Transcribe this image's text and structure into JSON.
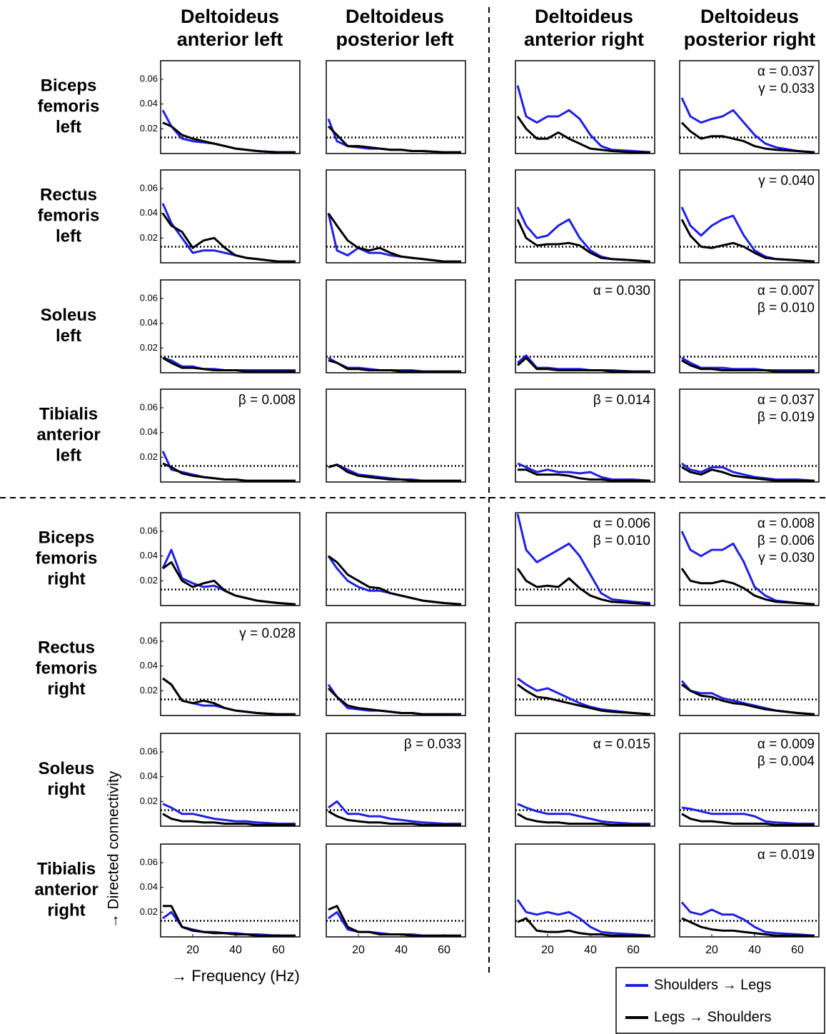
{
  "chart_data": {
    "type": "line",
    "column_titles": [
      [
        "Deltoideus",
        "anterior left"
      ],
      [
        "Deltoideus",
        "posterior left"
      ],
      [
        "Deltoideus",
        "anterior right"
      ],
      [
        "Deltoideus",
        "posterior right"
      ]
    ],
    "row_titles": [
      [
        "Biceps",
        "femoris",
        "left"
      ],
      [
        "Rectus",
        "femoris",
        "left"
      ],
      [
        "Soleus",
        "left"
      ],
      [
        "Tibialis",
        "anterior",
        "left"
      ],
      [
        "Biceps",
        "femoris",
        "right"
      ],
      [
        "Rectus",
        "femoris",
        "right"
      ],
      [
        "Soleus",
        "right"
      ],
      [
        "Tibialis",
        "anterior",
        "right"
      ]
    ],
    "x_label": "→ Frequency (Hz)",
    "y_label": "→ Directed connectivity",
    "series": [
      {
        "name": "Shoulders → Legs",
        "color": "#1f1fe6"
      },
      {
        "name": "Legs → Shoulders",
        "color": "#000000"
      }
    ],
    "x": [
      6,
      10,
      15,
      20,
      25,
      30,
      35,
      40,
      45,
      50,
      60,
      68
    ],
    "xlim": [
      5,
      70
    ],
    "xticks": [
      20,
      40,
      60
    ],
    "ylim": [
      0,
      0.075
    ],
    "yticks": [
      0.02,
      0.04,
      0.06
    ],
    "threshold": 0.013,
    "panels": [
      {
        "values": [
          [
            0.035,
            0.022,
            0.012,
            0.01,
            0.009,
            0.008,
            0.006,
            0.004,
            0.003,
            0.002,
            0.001,
            0.001
          ],
          [
            0.025,
            0.022,
            0.015,
            0.012,
            0.01,
            0.008,
            0.006,
            0.004,
            0.003,
            0.002,
            0.001,
            0.001
          ]
        ]
      },
      {
        "values": [
          [
            0.028,
            0.01,
            0.006,
            0.005,
            0.004,
            0.004,
            0.003,
            0.003,
            0.002,
            0.002,
            0.001,
            0.001
          ],
          [
            0.022,
            0.015,
            0.006,
            0.006,
            0.005,
            0.004,
            0.003,
            0.003,
            0.002,
            0.002,
            0.001,
            0.001
          ]
        ]
      },
      {
        "values": [
          [
            0.055,
            0.03,
            0.025,
            0.03,
            0.03,
            0.035,
            0.028,
            0.015,
            0.006,
            0.003,
            0.002,
            0.001
          ],
          [
            0.03,
            0.02,
            0.012,
            0.012,
            0.017,
            0.012,
            0.008,
            0.004,
            0.003,
            0.002,
            0.001,
            0.001
          ]
        ]
      },
      {
        "values": [
          [
            0.045,
            0.03,
            0.025,
            0.028,
            0.03,
            0.035,
            0.025,
            0.015,
            0.008,
            0.005,
            0.002,
            0.001
          ],
          [
            0.025,
            0.018,
            0.012,
            0.014,
            0.014,
            0.012,
            0.01,
            0.006,
            0.004,
            0.003,
            0.002,
            0.001
          ]
        ],
        "annotations": [
          "α = 0.037",
          "γ = 0.033"
        ]
      },
      {
        "values": [
          [
            0.048,
            0.032,
            0.02,
            0.008,
            0.01,
            0.01,
            0.008,
            0.006,
            0.004,
            0.003,
            0.001,
            0.001
          ],
          [
            0.04,
            0.03,
            0.025,
            0.012,
            0.018,
            0.02,
            0.012,
            0.006,
            0.004,
            0.003,
            0.001,
            0.001
          ]
        ]
      },
      {
        "values": [
          [
            0.04,
            0.01,
            0.006,
            0.012,
            0.008,
            0.008,
            0.006,
            0.005,
            0.004,
            0.003,
            0.001,
            0.001
          ],
          [
            0.04,
            0.03,
            0.018,
            0.012,
            0.01,
            0.012,
            0.008,
            0.005,
            0.004,
            0.003,
            0.001,
            0.001
          ]
        ]
      },
      {
        "values": [
          [
            0.045,
            0.03,
            0.02,
            0.022,
            0.03,
            0.035,
            0.02,
            0.01,
            0.005,
            0.003,
            0.002,
            0.001
          ],
          [
            0.035,
            0.02,
            0.014,
            0.015,
            0.015,
            0.016,
            0.014,
            0.008,
            0.004,
            0.003,
            0.002,
            0.001
          ]
        ]
      },
      {
        "values": [
          [
            0.045,
            0.03,
            0.022,
            0.03,
            0.035,
            0.038,
            0.022,
            0.01,
            0.005,
            0.003,
            0.002,
            0.001
          ],
          [
            0.035,
            0.022,
            0.013,
            0.012,
            0.014,
            0.016,
            0.013,
            0.008,
            0.004,
            0.003,
            0.002,
            0.001
          ]
        ],
        "annotations": [
          "γ = 0.040"
        ]
      },
      {
        "values": [
          [
            0.012,
            0.01,
            0.005,
            0.005,
            0.003,
            0.003,
            0.002,
            0.002,
            0.002,
            0.002,
            0.002,
            0.002
          ],
          [
            0.012,
            0.008,
            0.004,
            0.004,
            0.003,
            0.002,
            0.002,
            0.002,
            0.001,
            0.001,
            0.001,
            0.001
          ]
        ]
      },
      {
        "values": [
          [
            0.012,
            0.008,
            0.004,
            0.004,
            0.003,
            0.002,
            0.002,
            0.002,
            0.002,
            0.001,
            0.001,
            0.001
          ],
          [
            0.01,
            0.008,
            0.003,
            0.003,
            0.002,
            0.002,
            0.002,
            0.001,
            0.001,
            0.001,
            0.001,
            0.001
          ]
        ]
      },
      {
        "values": [
          [
            0.008,
            0.014,
            0.004,
            0.004,
            0.003,
            0.003,
            0.003,
            0.002,
            0.002,
            0.002,
            0.001,
            0.001
          ],
          [
            0.006,
            0.012,
            0.003,
            0.003,
            0.002,
            0.002,
            0.002,
            0.002,
            0.002,
            0.001,
            0.001,
            0.001
          ]
        ],
        "annotations": [
          "α = 0.030"
        ]
      },
      {
        "values": [
          [
            0.012,
            0.008,
            0.004,
            0.004,
            0.004,
            0.003,
            0.003,
            0.003,
            0.002,
            0.002,
            0.002,
            0.002
          ],
          [
            0.01,
            0.006,
            0.003,
            0.003,
            0.002,
            0.002,
            0.002,
            0.002,
            0.002,
            0.001,
            0.001,
            0.001
          ]
        ],
        "annotations": [
          "α = 0.007",
          "β = 0.010"
        ]
      },
      {
        "values": [
          [
            0.025,
            0.01,
            0.008,
            0.006,
            0.004,
            0.003,
            0.002,
            0.002,
            0.001,
            0.001,
            0.001,
            0.001
          ],
          [
            0.015,
            0.012,
            0.007,
            0.005,
            0.004,
            0.003,
            0.002,
            0.002,
            0.001,
            0.001,
            0.001,
            0.001
          ]
        ],
        "annotations": [
          "β = 0.008"
        ]
      },
      {
        "values": [
          [
            0.012,
            0.014,
            0.01,
            0.006,
            0.005,
            0.004,
            0.003,
            0.002,
            0.002,
            0.001,
            0.001,
            0.001
          ],
          [
            0.012,
            0.014,
            0.008,
            0.005,
            0.004,
            0.003,
            0.002,
            0.002,
            0.001,
            0.001,
            0.001,
            0.001
          ]
        ]
      },
      {
        "values": [
          [
            0.015,
            0.012,
            0.008,
            0.01,
            0.008,
            0.008,
            0.007,
            0.008,
            0.004,
            0.002,
            0.002,
            0.001
          ],
          [
            0.01,
            0.01,
            0.006,
            0.006,
            0.006,
            0.005,
            0.003,
            0.002,
            0.002,
            0.001,
            0.001,
            0.001
          ]
        ],
        "annotations": [
          "β = 0.014"
        ]
      },
      {
        "values": [
          [
            0.015,
            0.01,
            0.008,
            0.012,
            0.012,
            0.008,
            0.006,
            0.004,
            0.003,
            0.002,
            0.002,
            0.001
          ],
          [
            0.012,
            0.008,
            0.006,
            0.01,
            0.008,
            0.005,
            0.004,
            0.003,
            0.002,
            0.001,
            0.001,
            0.001
          ]
        ],
        "annotations": [
          "α = 0.037",
          "β = 0.019"
        ]
      },
      {
        "values": [
          [
            0.03,
            0.045,
            0.022,
            0.018,
            0.015,
            0.016,
            0.012,
            0.008,
            0.006,
            0.004,
            0.002,
            0.001
          ],
          [
            0.03,
            0.035,
            0.02,
            0.015,
            0.018,
            0.02,
            0.012,
            0.008,
            0.006,
            0.004,
            0.002,
            0.001
          ]
        ]
      },
      {
        "values": [
          [
            0.04,
            0.03,
            0.02,
            0.015,
            0.012,
            0.012,
            0.01,
            0.008,
            0.006,
            0.004,
            0.002,
            0.001
          ],
          [
            0.04,
            0.035,
            0.025,
            0.02,
            0.015,
            0.014,
            0.01,
            0.008,
            0.006,
            0.004,
            0.002,
            0.001
          ]
        ]
      },
      {
        "values": [
          [
            0.074,
            0.045,
            0.035,
            0.04,
            0.045,
            0.05,
            0.04,
            0.025,
            0.01,
            0.005,
            0.003,
            0.002
          ],
          [
            0.03,
            0.02,
            0.015,
            0.016,
            0.015,
            0.022,
            0.014,
            0.008,
            0.005,
            0.003,
            0.002,
            0.001
          ]
        ],
        "annotations": [
          "α = 0.006",
          "β = 0.010"
        ]
      },
      {
        "values": [
          [
            0.06,
            0.045,
            0.04,
            0.045,
            0.045,
            0.05,
            0.035,
            0.015,
            0.008,
            0.004,
            0.002,
            0.001
          ],
          [
            0.03,
            0.02,
            0.018,
            0.018,
            0.02,
            0.018,
            0.014,
            0.008,
            0.005,
            0.003,
            0.002,
            0.001
          ]
        ],
        "annotations": [
          "α = 0.008",
          "β = 0.006",
          "γ = 0.030"
        ]
      },
      {
        "values": [
          [
            0.03,
            0.025,
            0.012,
            0.01,
            0.008,
            0.008,
            0.006,
            0.004,
            0.003,
            0.002,
            0.001,
            0.001
          ],
          [
            0.03,
            0.025,
            0.012,
            0.01,
            0.012,
            0.01,
            0.006,
            0.004,
            0.003,
            0.002,
            0.001,
            0.001
          ]
        ],
        "annotations": [
          "γ = 0.028"
        ]
      },
      {
        "values": [
          [
            0.025,
            0.015,
            0.006,
            0.005,
            0.004,
            0.004,
            0.003,
            0.002,
            0.002,
            0.001,
            0.001,
            0.001
          ],
          [
            0.022,
            0.015,
            0.008,
            0.006,
            0.005,
            0.004,
            0.003,
            0.002,
            0.002,
            0.001,
            0.001,
            0.001
          ]
        ]
      },
      {
        "values": [
          [
            0.03,
            0.025,
            0.02,
            0.022,
            0.018,
            0.014,
            0.01,
            0.007,
            0.005,
            0.004,
            0.002,
            0.001
          ],
          [
            0.025,
            0.02,
            0.015,
            0.014,
            0.012,
            0.01,
            0.008,
            0.006,
            0.004,
            0.003,
            0.002,
            0.001
          ]
        ]
      },
      {
        "values": [
          [
            0.028,
            0.02,
            0.018,
            0.018,
            0.014,
            0.012,
            0.01,
            0.008,
            0.006,
            0.004,
            0.002,
            0.001
          ],
          [
            0.025,
            0.02,
            0.016,
            0.015,
            0.012,
            0.01,
            0.009,
            0.007,
            0.005,
            0.004,
            0.002,
            0.001
          ]
        ]
      },
      {
        "values": [
          [
            0.018,
            0.015,
            0.01,
            0.01,
            0.008,
            0.006,
            0.005,
            0.004,
            0.004,
            0.003,
            0.002,
            0.002
          ],
          [
            0.01,
            0.006,
            0.004,
            0.004,
            0.003,
            0.003,
            0.002,
            0.002,
            0.002,
            0.001,
            0.001,
            0.001
          ]
        ]
      },
      {
        "values": [
          [
            0.015,
            0.02,
            0.01,
            0.01,
            0.008,
            0.008,
            0.006,
            0.005,
            0.004,
            0.003,
            0.002,
            0.002
          ],
          [
            0.012,
            0.008,
            0.005,
            0.004,
            0.003,
            0.003,
            0.002,
            0.002,
            0.002,
            0.001,
            0.001,
            0.001
          ]
        ],
        "annotations": [
          "β = 0.033"
        ]
      },
      {
        "values": [
          [
            0.018,
            0.015,
            0.012,
            0.01,
            0.01,
            0.01,
            0.008,
            0.006,
            0.004,
            0.003,
            0.002,
            0.002
          ],
          [
            0.01,
            0.006,
            0.004,
            0.003,
            0.003,
            0.002,
            0.002,
            0.002,
            0.002,
            0.001,
            0.001,
            0.001
          ]
        ],
        "annotations": [
          "α = 0.015"
        ]
      },
      {
        "values": [
          [
            0.015,
            0.014,
            0.012,
            0.01,
            0.01,
            0.01,
            0.01,
            0.008,
            0.004,
            0.003,
            0.002,
            0.002
          ],
          [
            0.01,
            0.006,
            0.004,
            0.004,
            0.003,
            0.002,
            0.002,
            0.002,
            0.002,
            0.001,
            0.001,
            0.001
          ]
        ],
        "annotations": [
          "α = 0.009",
          "β = 0.004"
        ]
      },
      {
        "values": [
          [
            0.015,
            0.02,
            0.008,
            0.006,
            0.004,
            0.004,
            0.003,
            0.003,
            0.002,
            0.002,
            0.001,
            0.001
          ],
          [
            0.025,
            0.025,
            0.008,
            0.005,
            0.004,
            0.003,
            0.003,
            0.002,
            0.002,
            0.001,
            0.001,
            0.001
          ]
        ]
      },
      {
        "values": [
          [
            0.015,
            0.02,
            0.006,
            0.004,
            0.004,
            0.003,
            0.002,
            0.002,
            0.002,
            0.001,
            0.001,
            0.001
          ],
          [
            0.022,
            0.025,
            0.008,
            0.004,
            0.004,
            0.002,
            0.002,
            0.002,
            0.001,
            0.001,
            0.001,
            0.001
          ]
        ]
      },
      {
        "values": [
          [
            0.03,
            0.02,
            0.018,
            0.02,
            0.018,
            0.02,
            0.015,
            0.008,
            0.004,
            0.003,
            0.002,
            0.001
          ],
          [
            0.012,
            0.015,
            0.005,
            0.004,
            0.004,
            0.005,
            0.003,
            0.002,
            0.002,
            0.001,
            0.001,
            0.001
          ]
        ]
      },
      {
        "values": [
          [
            0.028,
            0.02,
            0.018,
            0.022,
            0.018,
            0.018,
            0.014,
            0.008,
            0.004,
            0.003,
            0.002,
            0.001
          ],
          [
            0.015,
            0.012,
            0.008,
            0.006,
            0.005,
            0.005,
            0.004,
            0.003,
            0.002,
            0.001,
            0.001,
            0.001
          ]
        ],
        "annotations": [
          "α = 0.019"
        ]
      }
    ]
  }
}
